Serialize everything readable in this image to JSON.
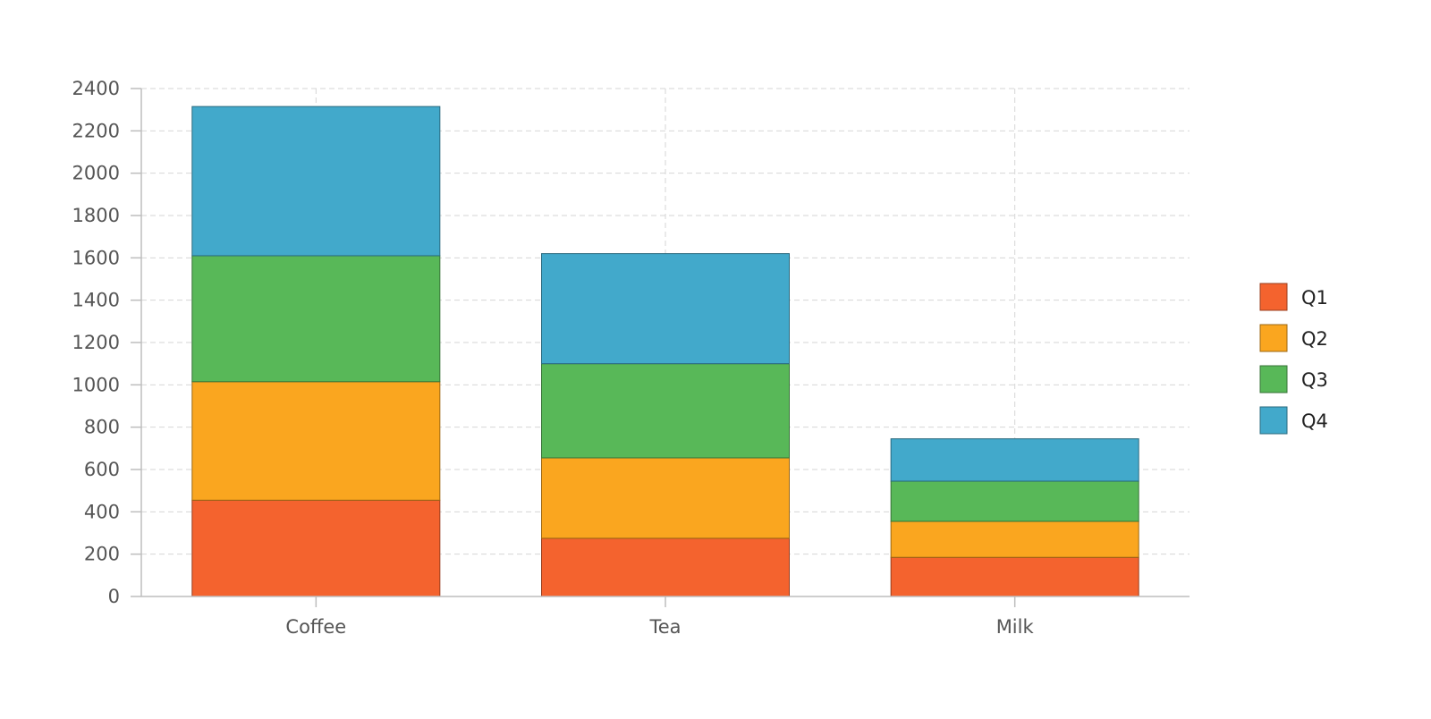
{
  "chart_data": {
    "type": "bar",
    "stacked": true,
    "title": "",
    "xlabel": "",
    "ylabel": "",
    "categories": [
      "Coffee",
      "Tea",
      "Milk"
    ],
    "series": [
      {
        "name": "Q1",
        "color": "#f4632e",
        "values": [
          455,
          275,
          185
        ]
      },
      {
        "name": "Q2",
        "color": "#faa61f",
        "values": [
          560,
          380,
          170
        ]
      },
      {
        "name": "Q3",
        "color": "#58b858",
        "values": [
          595,
          445,
          190
        ]
      },
      {
        "name": "Q4",
        "color": "#42a9cb",
        "values": [
          705,
          520,
          200
        ]
      }
    ],
    "ylim": [
      0,
      2400
    ],
    "yticks": [
      0,
      200,
      400,
      600,
      800,
      1000,
      1200,
      1400,
      1600,
      1800,
      2000,
      2200,
      2400
    ],
    "grid": true,
    "legend_position": "right"
  }
}
